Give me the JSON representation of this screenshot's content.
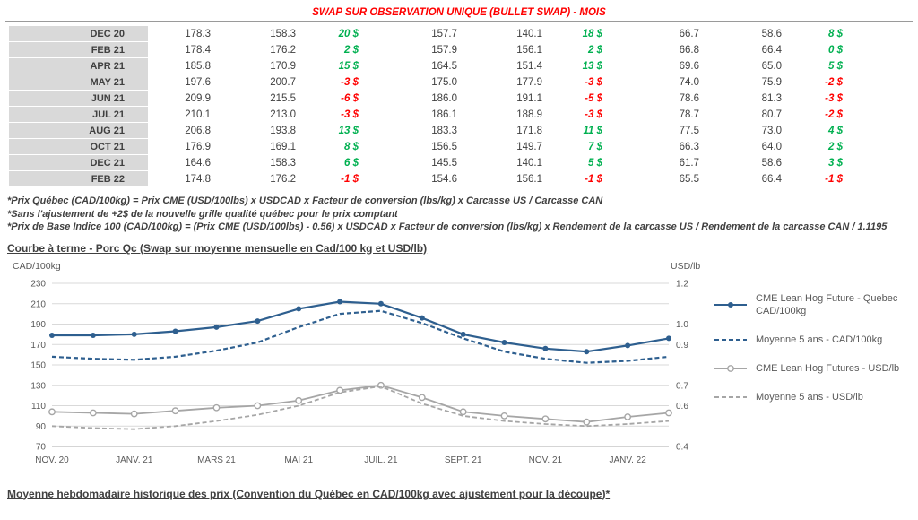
{
  "title": "SWAP SUR OBSERVATION UNIQUE (BULLET SWAP) - MOIS",
  "colors": {
    "title_red": "#ff0000",
    "positive_green": "#00b050",
    "negative_red": "#ff0000",
    "cad_line_blue": "#2e5f8f",
    "usd_line_gray": "#a6a6a6",
    "month_col_bg": "#d9d9d9",
    "text_dark": "#404040",
    "axis_text": "#595959",
    "gridline": "#d9d9d9"
  },
  "table": {
    "rows": [
      {
        "month": "DEC 20",
        "values": [
          "178.3",
          "158.3",
          "20 $",
          "157.7",
          "140.1",
          "18 $",
          "66.7",
          "58.6",
          "8 $"
        ]
      },
      {
        "month": "FEB 21",
        "values": [
          "178.4",
          "176.2",
          "2 $",
          "157.9",
          "156.1",
          "2 $",
          "66.8",
          "66.4",
          "0 $"
        ]
      },
      {
        "month": "APR 21",
        "values": [
          "185.8",
          "170.9",
          "15 $",
          "164.5",
          "151.4",
          "13 $",
          "69.6",
          "65.0",
          "5 $"
        ]
      },
      {
        "month": "MAY 21",
        "values": [
          "197.6",
          "200.7",
          "-3 $",
          "175.0",
          "177.9",
          "-3 $",
          "74.0",
          "75.9",
          "-2 $"
        ]
      },
      {
        "month": "JUN 21",
        "values": [
          "209.9",
          "215.5",
          "-6 $",
          "186.0",
          "191.1",
          "-5 $",
          "78.6",
          "81.3",
          "-3 $"
        ]
      },
      {
        "month": "JUL 21",
        "values": [
          "210.1",
          "213.0",
          "-3 $",
          "186.1",
          "188.9",
          "-3 $",
          "78.7",
          "80.7",
          "-2 $"
        ]
      },
      {
        "month": "AUG 21",
        "values": [
          "206.8",
          "193.8",
          "13 $",
          "183.3",
          "171.8",
          "11 $",
          "77.5",
          "73.0",
          "4 $"
        ]
      },
      {
        "month": "OCT 21",
        "values": [
          "176.9",
          "169.1",
          "8 $",
          "156.5",
          "149.7",
          "7 $",
          "66.3",
          "64.0",
          "2 $"
        ]
      },
      {
        "month": "DEC 21",
        "values": [
          "164.6",
          "158.3",
          "6 $",
          "145.5",
          "140.1",
          "5 $",
          "61.7",
          "58.6",
          "3 $"
        ]
      },
      {
        "month": "FEB 22",
        "values": [
          "174.8",
          "176.2",
          "-1 $",
          "154.6",
          "156.1",
          "-1 $",
          "65.5",
          "66.4",
          "-1 $"
        ]
      }
    ]
  },
  "footnotes": [
    "*Prix Québec (CAD/100kg) = Prix CME (USD/100lbs) x USDCAD x Facteur de conversion (lbs/kg) x Carcasse US / Carcasse CAN",
    "*Sans l'ajustement de +2$ de la nouvelle grille qualité québec pour le prix comptant",
    "*Prix de Base Indice 100 (CAD/100kg) = (Prix CME (USD/100lbs) - 0.56) x USDCAD x Facteur de conversion (lbs/kg) x Rendement de la carcasse US / Rendement de la carcasse CAN / 1.1195"
  ],
  "chart_section_title": "Courbe à terme - Porc Qc (Swap sur moyenne mensuelle en Cad/100 kg et USD/lb)",
  "bottom_section_title": "Moyenne hebdomadaire historique des prix (Convention du Québec en CAD/100kg avec ajustement pour la découpe)*",
  "chart_data": {
    "type": "line",
    "grid": true,
    "legend_position": "right",
    "x_tick_labels": [
      "NOV. 20",
      "JANV. 21",
      "MARS 21",
      "MAI 21",
      "JUIL. 21",
      "SEPT. 21",
      "NOV. 21",
      "JANV. 22"
    ],
    "x_tick_indices": [
      0,
      2,
      4,
      6,
      8,
      10,
      12,
      14
    ],
    "left_axis": {
      "label": "CAD/100kg",
      "min": 70,
      "max": 230,
      "ticks": [
        230,
        210,
        190,
        170,
        150,
        130,
        110,
        90,
        70
      ]
    },
    "right_axis": {
      "label": "USD/lb",
      "min": 0.4,
      "max": 1.2,
      "tick_labels": [
        "1.2",
        "",
        "1.0",
        "0.9",
        "",
        "0.7",
        "0.6",
        "",
        "0.4"
      ]
    },
    "series": [
      {
        "name": "CME Lean Hog Future - Quebec CAD/100kg",
        "axis": "left",
        "style": "solid",
        "marker": "dot",
        "color_key": "cad_line_blue",
        "values": [
          179,
          179,
          180,
          183,
          187,
          193,
          205,
          212,
          210,
          196,
          180,
          172,
          166,
          163,
          169,
          176
        ]
      },
      {
        "name": "Moyenne 5 ans - CAD/100kg",
        "axis": "left",
        "style": "dashed",
        "marker": "none",
        "color_key": "cad_line_blue",
        "values": [
          158,
          156,
          155,
          158,
          164,
          172,
          187,
          200,
          203,
          191,
          176,
          163,
          156,
          152,
          154,
          158
        ]
      },
      {
        "name": "CME Lean Hog Futures - USD/lb",
        "axis": "right",
        "style": "solid",
        "marker": "circle",
        "color_key": "usd_line_gray",
        "values": [
          0.57,
          0.565,
          0.56,
          0.575,
          0.59,
          0.6,
          0.625,
          0.675,
          0.7,
          0.64,
          0.57,
          0.55,
          0.535,
          0.52,
          0.545,
          0.565
        ]
      },
      {
        "name": "Moyenne 5 ans - USD/lb",
        "axis": "right",
        "style": "dashed",
        "marker": "none",
        "color_key": "usd_line_gray",
        "values": [
          0.5,
          0.49,
          0.485,
          0.5,
          0.525,
          0.555,
          0.6,
          0.665,
          0.695,
          0.61,
          0.55,
          0.525,
          0.51,
          0.5,
          0.51,
          0.525
        ]
      }
    ]
  }
}
